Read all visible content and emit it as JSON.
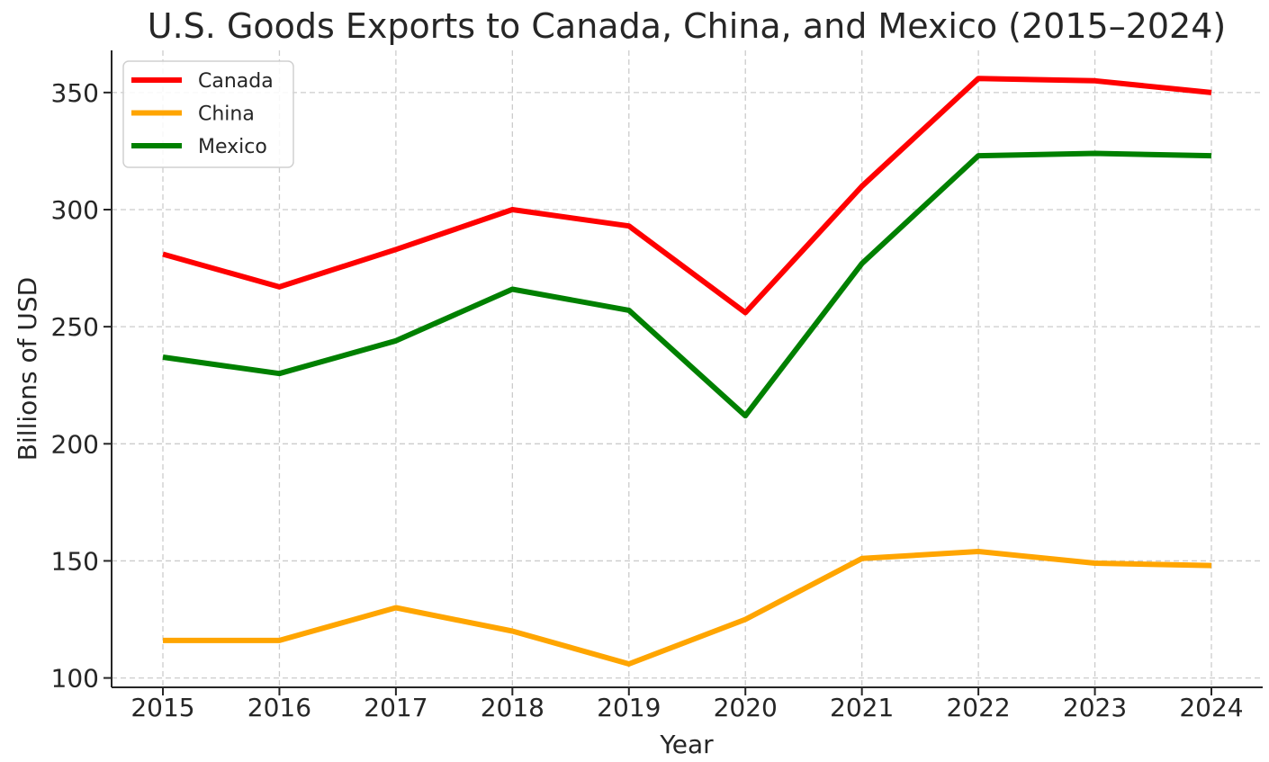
{
  "chart_data": {
    "type": "line",
    "title": "U.S. Goods Exports to Canada, China, and Mexico (2015–2024)",
    "xlabel": "Year",
    "ylabel": "Billions of USD",
    "x": [
      "2015",
      "2016",
      "2017",
      "2018",
      "2019",
      "2020",
      "2021",
      "2022",
      "2023",
      "2024"
    ],
    "yticks": [
      100,
      150,
      200,
      250,
      300,
      350
    ],
    "ylim": [
      96,
      368
    ],
    "grid": true,
    "legend_position": "top-left",
    "series": [
      {
        "name": "Canada",
        "color": "#ff0000",
        "values": [
          281,
          267,
          283,
          300,
          293,
          256,
          310,
          356,
          355,
          350
        ]
      },
      {
        "name": "China",
        "color": "#ffa500",
        "values": [
          116,
          116,
          130,
          120,
          106,
          125,
          151,
          154,
          149,
          148
        ]
      },
      {
        "name": "Mexico",
        "color": "#008000",
        "values": [
          237,
          230,
          244,
          266,
          257,
          212,
          277,
          323,
          324,
          323
        ]
      }
    ]
  }
}
